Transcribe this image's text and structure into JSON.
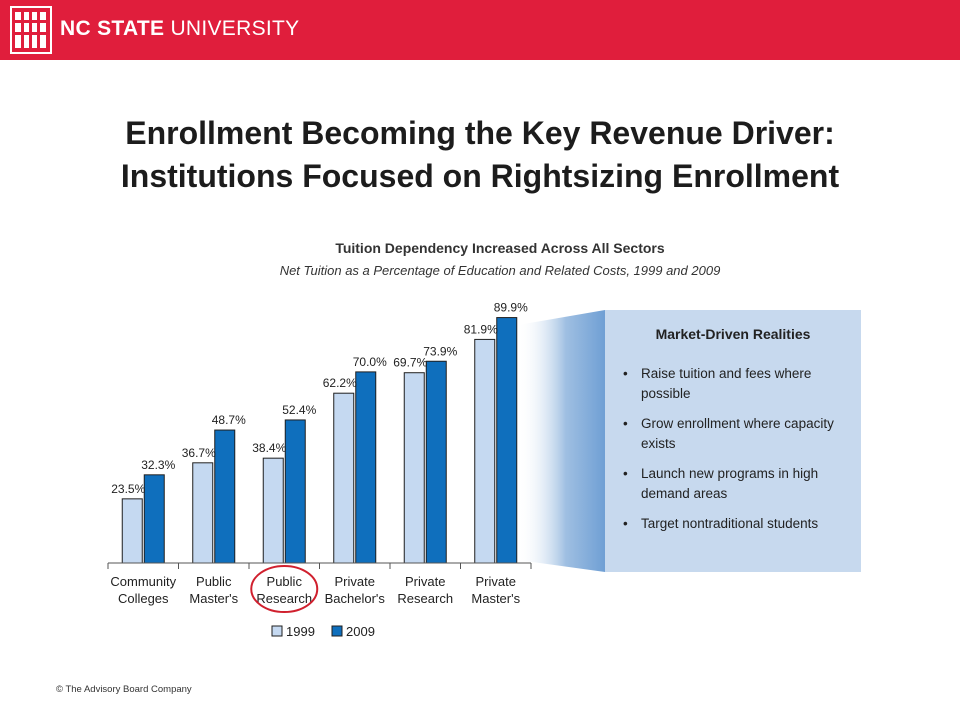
{
  "header": {
    "brand_bold": "NC STATE",
    "brand_rest": "UNIVERSITY",
    "background_color": "#e01e3c"
  },
  "slide": {
    "title_line1": "Enrollment Becoming the Key Revenue Driver:",
    "title_line2": "Institutions Focused on Rightsizing Enrollment"
  },
  "chart_data": {
    "type": "bar",
    "title": "Tuition Dependency Increased Across All Sectors",
    "subtitle": "Net Tuition as a Percentage of Education and Related Costs, 1999 and 2009",
    "categories": [
      [
        "Community",
        "Colleges"
      ],
      [
        "Public",
        "Master's"
      ],
      [
        "Public",
        "Research"
      ],
      [
        "Private",
        "Bachelor's"
      ],
      [
        "Private",
        "Research"
      ],
      [
        "Private",
        "Master's"
      ]
    ],
    "series": [
      {
        "name": "1999",
        "values": [
          23.5,
          36.7,
          38.4,
          62.2,
          69.7,
          81.9
        ],
        "color": "#c5d9f1"
      },
      {
        "name": "2009",
        "values": [
          32.3,
          48.7,
          52.4,
          70.0,
          73.9,
          89.9
        ],
        "color": "#0f6fbd"
      }
    ],
    "value_suffix": "%",
    "ylim": [
      0,
      100
    ],
    "grid": false,
    "legend": "bottom",
    "highlighted_category": [
      "Public",
      "Research"
    ],
    "highlight_color": "#d0202e"
  },
  "callout": {
    "title": "Market-Driven Realities",
    "bullets": [
      "Raise tuition and fees where possible",
      "Grow enrollment where capacity exists",
      "Launch new programs in high demand areas",
      "Target nontraditional students"
    ],
    "background_color": "#c7d9ee"
  },
  "footer": {
    "copyright": "© The Advisory Board Company"
  }
}
